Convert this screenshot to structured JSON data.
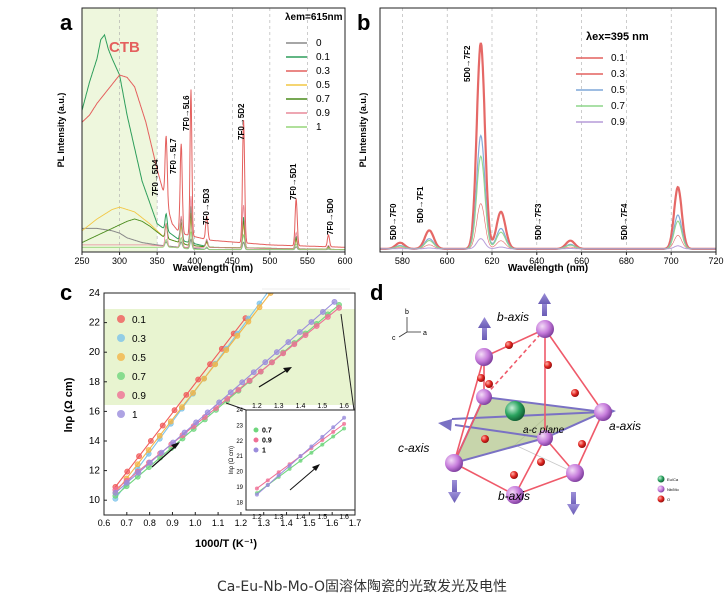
{
  "caption": "Ca-Eu-Nb-Mo-O固溶体陶瓷的光致发光及电性",
  "panels": {
    "a": {
      "letter": "a",
      "legend_title": "λem=615nm",
      "legend_items": [
        "0",
        "0.1",
        "0.3",
        "0.5",
        "0.7",
        "0.9",
        "1"
      ],
      "band_label": "CTB",
      "xlabel": "Wavelength (nm)",
      "ylabel": "PL Intensity (a.u.)",
      "transitions": [
        "7F0→5D4",
        "7F0→5L7",
        "7F0→5L6",
        "7F0→5D3",
        "7F0→5D2",
        "7F0→5D1",
        "7F0→5D0"
      ]
    },
    "b": {
      "letter": "b",
      "legend_title": "λex=395 nm",
      "legend_items": [
        "0.1",
        "0.3",
        "0.5",
        "0.7",
        "0.9"
      ],
      "xlabel": "Wavelength (nm)",
      "ylabel": "PL Intensity (a.u.)",
      "transitions": [
        "5D0→7F0",
        "5D0→7F1",
        "5D0→7F2",
        "5D0→7F3",
        "5D0→7F4"
      ]
    },
    "c": {
      "letter": "c",
      "legend_items": [
        "0.1",
        "0.3",
        "0.5",
        "0.7",
        "0.9",
        "1"
      ],
      "inset_legend": [
        "0.7",
        "0.9",
        "1"
      ],
      "xlabel": "1000/T (K⁻¹)",
      "ylabel": "lnρ (Ω cm)",
      "inset_ylabel": "lnρ (Ω cm)"
    },
    "d": {
      "letter": "d",
      "b_axis_label": "b-axis",
      "a_axis_label": "a-axis",
      "c_axis_label": "c-axis",
      "plane_label": "a-c plane",
      "orient_b": "b",
      "orient_a": "a",
      "orient_c": "c",
      "atom_legend": [
        "Eu/Ca",
        "Nb/Mo",
        "O"
      ]
    }
  },
  "colors": {
    "series": [
      "#888888",
      "#2e9e5b",
      "#e4605e",
      "#f2c744",
      "#4a8c1c",
      "#e88a9a",
      "#96d67a"
    ],
    "b_series": [
      "#e4605e",
      "#e4605e",
      "#7ea7d8",
      "#8ed68a",
      "#b59bd8"
    ],
    "c_series": [
      "#f05a5a",
      "#7cc3ea",
      "#f3b547",
      "#6fd67d",
      "#ef6f95",
      "#9a8cdc"
    ],
    "ctb_band": "#eef7dd",
    "fit_band": "#e8f4d0"
  },
  "chart_data": [
    {
      "panel": "a",
      "type": "line",
      "title": "",
      "xlabel": "Wavelength (nm)",
      "ylabel": "PL Intensity (a.u.)",
      "xlim": [
        250,
        600
      ],
      "xticks": [
        250,
        300,
        350,
        400,
        450,
        500,
        550,
        600
      ],
      "ylim": [
        0,
        1
      ],
      "grid": "vertical dashed",
      "legend_title": "λem=615nm",
      "legend_position": "top-right",
      "band": {
        "label": "CTB",
        "x": [
          250,
          350
        ]
      },
      "series": [
        {
          "name": "0",
          "x": [
            250,
            270,
            290,
            300,
            310,
            330,
            350,
            380,
            420,
            600
          ],
          "values": [
            0.1,
            0.1,
            0.09,
            0.08,
            0.06,
            0.04,
            0.03,
            0.02,
            0.01,
            0.01
          ]
        },
        {
          "name": "0.1",
          "x": [
            250,
            260,
            270,
            275,
            280,
            285,
            290,
            300,
            310,
            330,
            350,
            380,
            420,
            600
          ],
          "values": [
            0.6,
            0.72,
            0.82,
            0.9,
            0.92,
            0.86,
            0.82,
            0.75,
            0.58,
            0.3,
            0.12,
            0.05,
            0.02,
            0.01
          ]
        },
        {
          "name": "0.3",
          "x": [
            250,
            260,
            270,
            280,
            290,
            300,
            310,
            320,
            335,
            350,
            370,
            380,
            420,
            500,
            600
          ],
          "values": [
            0.55,
            0.58,
            0.63,
            0.67,
            0.71,
            0.75,
            0.74,
            0.7,
            0.55,
            0.35,
            0.12,
            0.08,
            0.05,
            0.03,
            0.02
          ]
        },
        {
          "name": "0.5",
          "x": [
            250,
            270,
            290,
            300,
            320,
            340,
            360,
            390,
            420,
            600
          ],
          "values": [
            0.09,
            0.14,
            0.18,
            0.19,
            0.17,
            0.12,
            0.06,
            0.03,
            0.02,
            0.01
          ]
        },
        {
          "name": "0.7",
          "x": [
            250,
            270,
            290,
            310,
            320,
            330,
            340,
            360,
            390,
            420,
            600
          ],
          "values": [
            0.04,
            0.07,
            0.1,
            0.13,
            0.14,
            0.13,
            0.11,
            0.06,
            0.03,
            0.02,
            0.01
          ]
        },
        {
          "name": "0.9",
          "x": [
            250,
            280,
            310,
            340,
            370,
            400,
            600
          ],
          "values": [
            0.03,
            0.03,
            0.03,
            0.03,
            0.02,
            0.02,
            0.01
          ]
        },
        {
          "name": "1",
          "x": [
            250,
            280,
            310,
            340,
            370,
            400,
            600
          ],
          "values": [
            0.02,
            0.02,
            0.02,
            0.02,
            0.02,
            0.01,
            0.01
          ]
        }
      ],
      "peaks": [
        {
          "label": "7F0→5D4",
          "x": 362,
          "height": 0.28
        },
        {
          "label": "7F0→5L7",
          "x": 382,
          "height": 0.38
        },
        {
          "label": "7F0→5L6",
          "x": 395,
          "height": 0.62
        },
        {
          "label": "7F0→5D3",
          "x": 416,
          "height": 0.1
        },
        {
          "label": "7F0→5D2",
          "x": 465,
          "height": 0.52
        },
        {
          "label": "7F0→5D1",
          "x": 535,
          "height": 0.2
        },
        {
          "label": "7F0→5D0",
          "x": 578,
          "height": 0.05
        }
      ]
    },
    {
      "panel": "b",
      "type": "line",
      "title": "",
      "xlabel": "Wavelength (nm)",
      "ylabel": "PL Intensity (a.u.)",
      "xlim": [
        570,
        720
      ],
      "xticks": [
        580,
        600,
        620,
        640,
        660,
        680,
        700,
        720
      ],
      "ylim": [
        0,
        1
      ],
      "grid": "vertical dashed",
      "legend_title": "λex=395 nm",
      "legend_position": "top-right",
      "series": [
        {
          "name": "0.1",
          "peak_scale": 0.22
        },
        {
          "name": "0.3",
          "peak_scale": 1.0
        },
        {
          "name": "0.5",
          "peak_scale": 0.55
        },
        {
          "name": "0.7",
          "peak_scale": 0.45
        },
        {
          "name": "0.9",
          "peak_scale": 0.05
        }
      ],
      "peaks": [
        {
          "label": "5D0→7F0",
          "x": 579,
          "height": 0.03
        },
        {
          "label": "5D0→7F1",
          "x": 592,
          "height": 0.09
        },
        {
          "label": "5D0→7F2",
          "x": 615,
          "height": 1.0
        },
        {
          "label": "5D0→7F2 shoulder",
          "x": 624,
          "height": 0.18
        },
        {
          "label": "5D0→7F3",
          "x": 655,
          "height": 0.04
        },
        {
          "label": "5D0→7F4",
          "x": 703,
          "height": 0.3
        }
      ]
    },
    {
      "panel": "c",
      "type": "scatter",
      "title": "",
      "xlabel": "1000/T (K⁻¹)",
      "ylabel": "lnρ (Ω cm)",
      "xlim": [
        0.6,
        1.7
      ],
      "xticks": [
        0.6,
        0.7,
        0.8,
        0.9,
        1.0,
        1.1,
        1.2,
        1.3,
        1.4,
        1.5,
        1.6,
        1.7
      ],
      "ylim": [
        9,
        24
      ],
      "yticks": [
        10,
        12,
        14,
        16,
        18,
        20,
        22,
        24
      ],
      "legend_position": "top-left",
      "series": [
        {
          "name": "0.1",
          "x_start": 0.65,
          "x_end": 1.22,
          "y_start": 10.9,
          "y_end": 22.3
        },
        {
          "name": "0.3",
          "x_start": 0.65,
          "x_end": 1.33,
          "y_start": 10.1,
          "y_end": 24.3
        },
        {
          "name": "0.5",
          "x_start": 0.65,
          "x_end": 1.33,
          "y_start": 10.5,
          "y_end": 24.0
        },
        {
          "name": "0.7",
          "x_start": 0.65,
          "x_end": 1.63,
          "y_start": 10.3,
          "y_end": 23.2
        },
        {
          "name": "0.9",
          "x_start": 0.65,
          "x_end": 1.63,
          "y_start": 10.7,
          "y_end": 23.0
        },
        {
          "name": "1",
          "x_start": 0.65,
          "x_end": 1.61,
          "y_start": 10.5,
          "y_end": 23.4
        }
      ],
      "inset": {
        "xlim": [
          1.15,
          1.65
        ],
        "xticks": [
          1.2,
          1.3,
          1.4,
          1.5,
          1.6
        ],
        "ylim": [
          17.5,
          24
        ],
        "yticks": [
          18,
          19,
          20,
          21,
          22,
          23,
          24
        ],
        "series": [
          {
            "name": "0.7",
            "x_start": 1.2,
            "x_end": 1.6,
            "y_start": 18.6,
            "y_end": 22.8
          },
          {
            "name": "0.9",
            "x_start": 1.2,
            "x_end": 1.6,
            "y_start": 18.9,
            "y_end": 23.1
          },
          {
            "name": "1",
            "x_start": 1.2,
            "x_end": 1.6,
            "y_start": 18.5,
            "y_end": 23.5
          }
        ]
      }
    }
  ]
}
